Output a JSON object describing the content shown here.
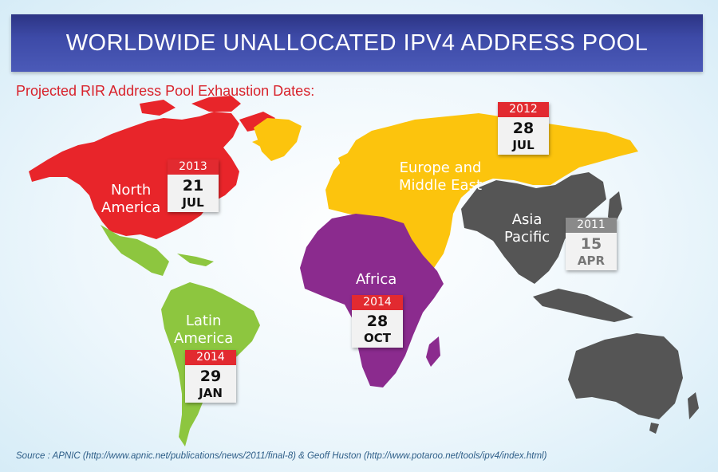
{
  "title": "WORLDWIDE UNALLOCATED IPV4 ADDRESS POOL",
  "subtitle": "Projected RIR Address Pool Exhaustion Dates:",
  "colors": {
    "north_america": "#e8252a",
    "latin_america": "#8dc63f",
    "europe_middle_east": "#fcc40d",
    "africa": "#8b2b8e",
    "asia_pacific": "#555555",
    "banner": "#3d4aa7"
  },
  "regions": [
    {
      "id": "north_america",
      "label": "North\nAmerica",
      "year": "2013",
      "day": "21",
      "month": "JUL"
    },
    {
      "id": "europe_middle_east",
      "label": "Europe and\nMiddle East",
      "year": "2012",
      "day": "28",
      "month": "JUL"
    },
    {
      "id": "asia_pacific",
      "label": "Asia\nPacific",
      "year": "2011",
      "day": "15",
      "month": "APR"
    },
    {
      "id": "africa",
      "label": "Africa",
      "year": "2014",
      "day": "28",
      "month": "OCT"
    },
    {
      "id": "latin_america",
      "label": "Latin\nAmerica",
      "year": "2014",
      "day": "29",
      "month": "JAN"
    }
  ],
  "source": "Source : APNIC (http://www.apnic.net/publications/news/2011/final-8) & Geoff Huston (http://www.potaroo.net/tools/ipv4/index.html)"
}
